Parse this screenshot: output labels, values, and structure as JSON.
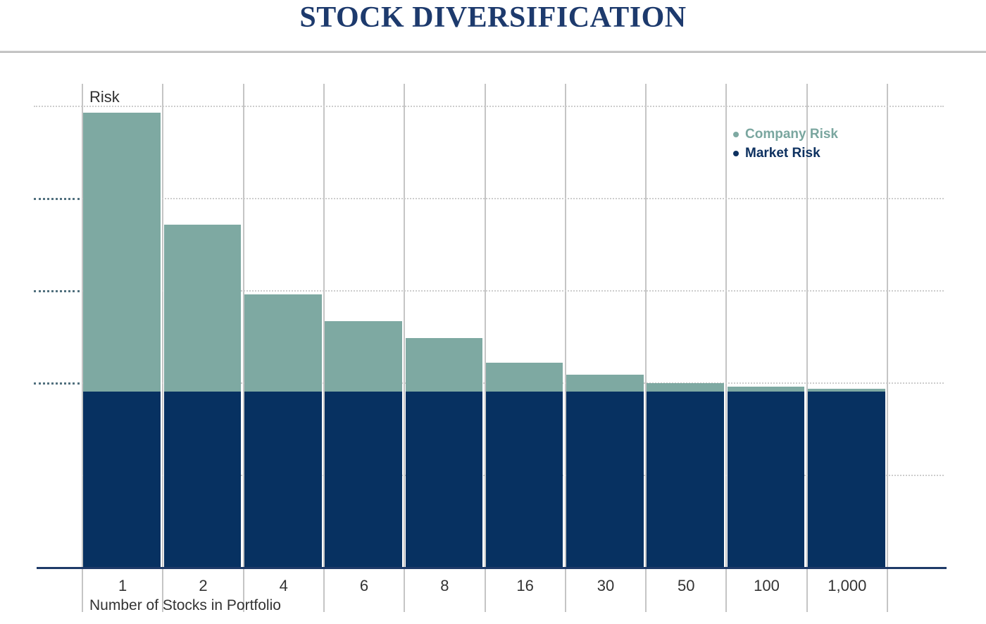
{
  "page": {
    "title": "STOCK DIVERSIFICATION"
  },
  "colors": {
    "title_navy": "#1d3a6d",
    "market_navy": "#073161",
    "company_teal": "#7ea9a2",
    "legend_company_text": "#7aa69f",
    "legend_market_text": "#0e3160",
    "axis_line_navy": "#1e3a68",
    "gridline_gray": "#c5c5c5",
    "tick_slate": "#51707e",
    "label_gray": "#333333"
  },
  "legend": {
    "items": [
      {
        "label": "Company Risk",
        "color": "#7ea9a2",
        "text_color": "#7aa69f"
      },
      {
        "label": "Market Risk",
        "color": "#0e3160",
        "text_color": "#0e3160"
      }
    ]
  },
  "chart_data": {
    "type": "bar",
    "stacked": true,
    "title": "STOCK DIVERSIFICATION",
    "xlabel": "Number of Stocks in Portfolio",
    "ylabel": "Risk",
    "categories": [
      "1",
      "2",
      "4",
      "6",
      "8",
      "16",
      "30",
      "50",
      "100",
      "1,000"
    ],
    "series": [
      {
        "name": "Market Risk",
        "color": "#073161",
        "values": [
          1.91,
          1.91,
          1.91,
          1.91,
          1.91,
          1.91,
          1.91,
          1.91,
          1.91,
          1.91
        ]
      },
      {
        "name": "Company Risk",
        "color": "#7ea9a2",
        "values": [
          3.02,
          1.81,
          1.05,
          0.76,
          0.58,
          0.31,
          0.18,
          0.09,
          0.05,
          0.03
        ]
      }
    ],
    "value_units": "relative risk (1 unit = one dotted gridline spacing; no numeric axis labels shown)",
    "ylim": [
      0,
      5.25
    ],
    "y_gridlines_at": [
      1,
      2,
      3,
      4,
      5
    ],
    "y_ticks_marked": [
      2,
      3,
      4
    ],
    "grid": "horizontal dotted + vertical column separators",
    "legend_position": "top-right inside plot"
  }
}
